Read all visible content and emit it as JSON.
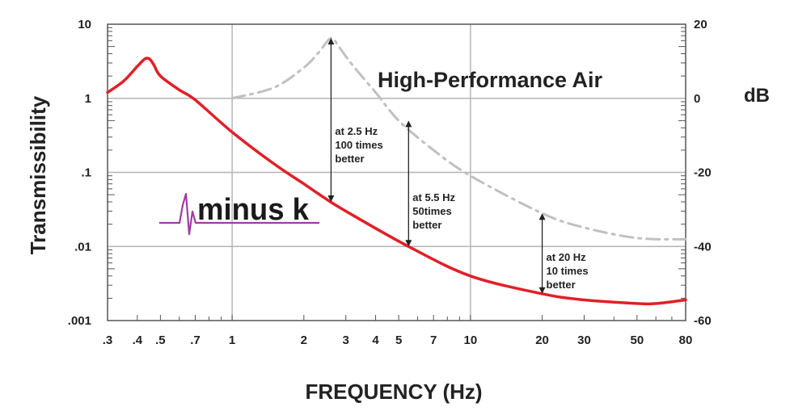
{
  "chart_data": {
    "type": "line",
    "title": "",
    "xlabel": "FREQUENCY (Hz)",
    "ylabel": "Transmissibility",
    "y2label": "dB",
    "xscale": "log",
    "yscale": "log",
    "xlim": [
      0.3,
      80
    ],
    "ylim": [
      0.001,
      10
    ],
    "y2lim": [
      -60,
      20
    ],
    "grid": true,
    "x_ticks": [
      ".3",
      ".4",
      ".5",
      ".7",
      "1",
      "2",
      "3",
      "4",
      "5",
      "7",
      "10",
      "20",
      "30",
      "50",
      "80"
    ],
    "x_tick_values": [
      0.3,
      0.4,
      0.5,
      0.7,
      1,
      2,
      3,
      4,
      5,
      7,
      10,
      20,
      30,
      50,
      80
    ],
    "y_ticks": [
      "10",
      "1",
      ".1",
      ".01",
      ".001"
    ],
    "y_tick_values": [
      10,
      1,
      0.1,
      0.01,
      0.001
    ],
    "y2_ticks": [
      "20",
      "0",
      "-20",
      "-40",
      "-60"
    ],
    "y2_tick_values": [
      20,
      0,
      -20,
      -40,
      -60
    ],
    "series": [
      {
        "name": "minus k",
        "color": "#e41e26",
        "style": "solid",
        "x": [
          0.3,
          0.35,
          0.4,
          0.43,
          0.45,
          0.47,
          0.5,
          0.6,
          0.7,
          1,
          1.5,
          2,
          2.5,
          3,
          5.5,
          10,
          20,
          30,
          50,
          60,
          80
        ],
        "y": [
          1.2,
          1.7,
          2.7,
          3.4,
          3.4,
          2.8,
          2.0,
          1.3,
          0.95,
          0.35,
          0.13,
          0.07,
          0.043,
          0.03,
          0.01,
          0.004,
          0.0023,
          0.0019,
          0.0017,
          0.0017,
          0.0019
        ]
      },
      {
        "name": "High-Performance Air",
        "color": "#c0c0c0",
        "style": "dash-dot",
        "x": [
          1,
          1.5,
          2,
          2.3,
          2.6,
          2.8,
          3.2,
          4,
          5,
          7,
          10,
          20,
          30,
          50,
          80
        ],
        "y": [
          1.0,
          1.4,
          2.6,
          4.1,
          6.5,
          5.0,
          2.8,
          1.2,
          0.5,
          0.2,
          0.09,
          0.028,
          0.018,
          0.013,
          0.0125
        ]
      }
    ],
    "annotations": [
      {
        "lines": [
          "at 2.5 Hz",
          "100 times",
          "better"
        ],
        "x": 2.6,
        "y_top": 6.5,
        "y_bottom": 0.04
      },
      {
        "lines": [
          "at 5.5 Hz",
          "50times",
          "better"
        ],
        "x": 5.5,
        "y_top": 0.5,
        "y_bottom": 0.01
      },
      {
        "lines": [
          "at 20 Hz",
          "10 times",
          "better"
        ],
        "x": 20,
        "y_top": 0.028,
        "y_bottom": 0.0023
      }
    ],
    "series_label": "High-Performance Air",
    "logo_text": "minus k"
  }
}
